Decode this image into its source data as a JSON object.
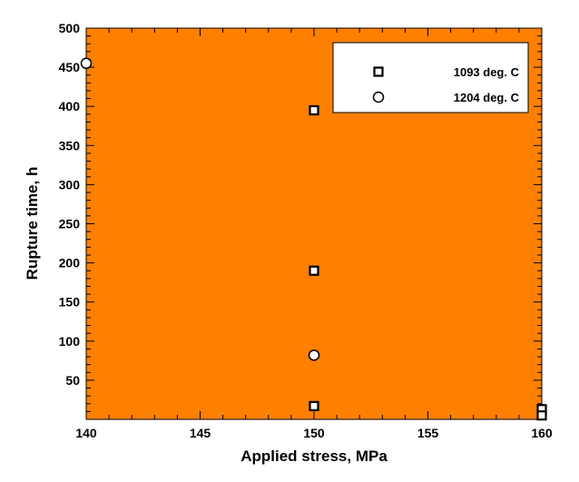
{
  "chart_data": {
    "type": "scatter",
    "xlabel": "Applied stress, MPa",
    "ylabel": "Rupture time, h",
    "xlim": [
      140,
      160
    ],
    "ylim": [
      0,
      500
    ],
    "x_ticks": [
      140,
      145,
      150,
      155,
      160
    ],
    "y_ticks": [
      50,
      100,
      150,
      200,
      250,
      300,
      350,
      400,
      450,
      500
    ],
    "plot_background": "#FF8000",
    "grid": false,
    "legend_position": "top-right",
    "series": [
      {
        "name": "1093 deg. C",
        "marker": "square",
        "points": [
          {
            "x": 150,
            "y": 395
          },
          {
            "x": 150,
            "y": 190
          },
          {
            "x": 150,
            "y": 17
          },
          {
            "x": 160,
            "y": 13
          },
          {
            "x": 160,
            "y": 5
          }
        ]
      },
      {
        "name": "1204 deg. C",
        "marker": "circle",
        "points": [
          {
            "x": 140,
            "y": 455
          },
          {
            "x": 150,
            "y": 82
          }
        ]
      }
    ]
  }
}
